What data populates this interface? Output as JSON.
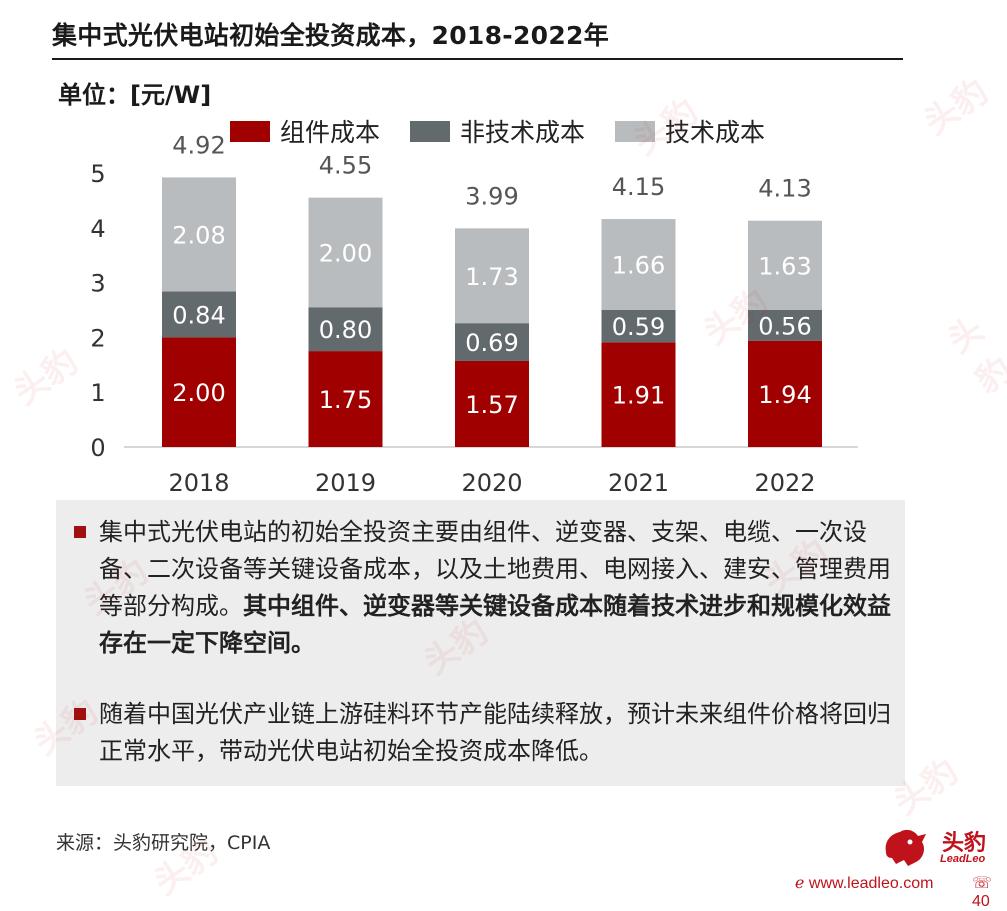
{
  "title": "集中式光伏电站初始全投资成本，2018-2022年",
  "unit": "单位：[元/W]",
  "colors": {
    "module": "#a00000",
    "non_tech": "#636a6e",
    "tech": "#b9bcbe",
    "accent": "#c0121b",
    "bullet_bg": "#ededed"
  },
  "legend": [
    {
      "label": "组件成本",
      "color": "#a00000"
    },
    {
      "label": "非技术成本",
      "color": "#636a6e"
    },
    {
      "label": "技术成本",
      "color": "#b9bcbe"
    }
  ],
  "chart_data": {
    "type": "bar",
    "stacked": true,
    "categories": [
      "2018",
      "2019",
      "2020",
      "2021",
      "2022"
    ],
    "series": [
      {
        "name": "组件成本",
        "values": [
          2.0,
          1.75,
          1.57,
          1.91,
          1.94
        ],
        "labels": [
          "2.00",
          "1.75",
          "1.57",
          "1.91",
          "1.94"
        ]
      },
      {
        "name": "非技术成本",
        "values": [
          0.84,
          0.8,
          0.69,
          0.59,
          0.56
        ],
        "labels": [
          "0.84",
          "0.80",
          "0.69",
          "0.59",
          "0.56"
        ]
      },
      {
        "name": "技术成本",
        "values": [
          2.08,
          2.0,
          1.73,
          1.66,
          1.63
        ],
        "labels": [
          "2.08",
          "2.00",
          "1.73",
          "1.66",
          "1.63"
        ]
      }
    ],
    "totals": [
      "4.92",
      "4.55",
      "3.99",
      "4.15",
      "4.13"
    ],
    "yticks": [
      "0",
      "1",
      "2",
      "3",
      "4",
      "5"
    ],
    "ylim": [
      0,
      5
    ],
    "grid": false,
    "legend_position": "top"
  },
  "bullets": [
    {
      "normal": "集中式光伏电站的初始全投资主要由组件、逆变器、支架、电缆、一次设备、二次设备等关键设备成本，以及土地费用、电网接入、建安、管理费用等部分构成。",
      "bold": "其中组件、逆变器等关键设备成本随着技术进步和规模化效益存在一定下降空间。"
    },
    {
      "normal": "随着中国光伏产业链上游硅料环节产能陆续释放，预计未来组件价格将回归正常水平，带动光伏电站初始全投资成本降低。",
      "bold": ""
    }
  ],
  "source": "来源：头豹研究院，CPIA",
  "brand": {
    "name": "头豹",
    "sub": "LeadLeo",
    "website": "www.leadleo.com",
    "page": "40"
  },
  "watermark_text": "头豹"
}
